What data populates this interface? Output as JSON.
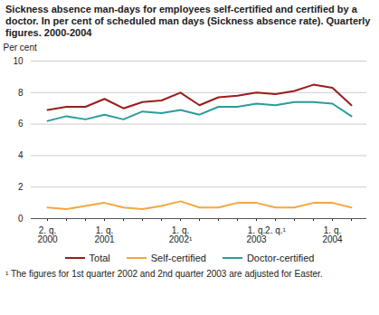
{
  "chart_data": {
    "type": "line",
    "title": "Sickness absence man-days for employees self-certified and certified by a doctor. In per cent of scheduled man days (Sickness absence rate). Quarterly figures. 2000-2004",
    "y_label": "Per cent",
    "caption": "¹ The figures for 1st quarter 2002 and 2nd quarter 2003 are adjusted for Easter.",
    "categories": [
      "2. q.\n2000",
      null,
      null,
      "1. q.\n2001",
      null,
      null,
      null,
      "1. q.\n2002¹",
      null,
      null,
      null,
      "1. q.\n2003",
      "2. q.¹",
      null,
      null,
      "1. q.\n2004",
      null
    ],
    "series": [
      {
        "name": "Total",
        "color": "#9b1c1c",
        "values": [
          6.9,
          7.1,
          7.1,
          7.6,
          7.0,
          7.4,
          7.5,
          8.0,
          7.2,
          7.7,
          7.8,
          8.0,
          7.9,
          8.1,
          8.5,
          8.3,
          7.2
        ]
      },
      {
        "name": "Self-certified",
        "color": "#f4a742",
        "values": [
          0.7,
          0.6,
          0.8,
          1.0,
          0.7,
          0.6,
          0.8,
          1.1,
          0.7,
          0.7,
          1.0,
          1.0,
          0.7,
          0.7,
          1.0,
          1.0,
          0.7
        ]
      },
      {
        "name": "Doctor-certified",
        "color": "#2a9d9a",
        "values": [
          6.2,
          6.5,
          6.3,
          6.6,
          6.3,
          6.8,
          6.7,
          6.9,
          6.6,
          7.1,
          7.1,
          7.3,
          7.2,
          7.4,
          7.4,
          7.3,
          6.5
        ]
      }
    ],
    "ylim": [
      0,
      10
    ],
    "yticks": [
      0,
      2,
      4,
      6,
      8,
      10
    ],
    "grid": true,
    "legend": "bottom"
  }
}
